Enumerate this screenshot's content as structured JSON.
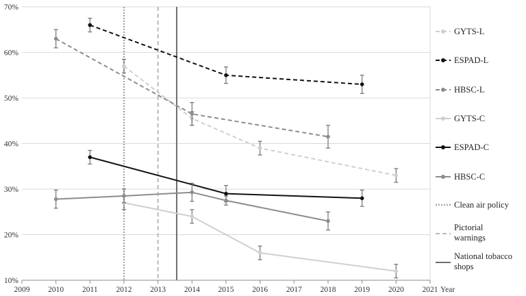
{
  "chart_data": {
    "type": "line",
    "title": "",
    "xlabel": "Year",
    "ylabel": "",
    "xlim": [
      2009,
      2021
    ],
    "ylim": [
      10,
      70
    ],
    "x_ticks": [
      "2009",
      "2010",
      "2011",
      "2012",
      "2013",
      "2014",
      "2015",
      "2016",
      "2017",
      "2018",
      "2019",
      "2020",
      "2021"
    ],
    "y_ticks": [
      "10%",
      "20%",
      "30%",
      "40%",
      "50%",
      "60%",
      "70%"
    ],
    "grid": "horizontal",
    "legend_position": "right",
    "series": [
      {
        "name": "GYTS-L",
        "color": "#cfcfcf",
        "dash": "dashed",
        "width": 2,
        "points": [
          {
            "x": 2012,
            "y": 57,
            "err": 1.5
          },
          {
            "x": 2014,
            "y": 45.5,
            "err": 1.5
          },
          {
            "x": 2016,
            "y": 39,
            "err": 1.5
          },
          {
            "x": 2020,
            "y": 33,
            "err": 1.5
          }
        ]
      },
      {
        "name": "ESPAD-L",
        "color": "#111111",
        "dash": "dashed",
        "width": 2,
        "points": [
          {
            "x": 2011,
            "y": 66,
            "err": 1.5
          },
          {
            "x": 2015,
            "y": 55,
            "err": 1.8
          },
          {
            "x": 2019,
            "y": 53,
            "err": 2
          }
        ]
      },
      {
        "name": "HBSC-L",
        "color": "#8c8c8c",
        "dash": "dashed",
        "width": 2,
        "points": [
          {
            "x": 2010,
            "y": 63,
            "err": 2
          },
          {
            "x": 2014,
            "y": 46.5,
            "err": 2.5
          },
          {
            "x": 2018,
            "y": 41.5,
            "err": 2.5
          }
        ]
      },
      {
        "name": "GYTS-C",
        "color": "#cfcfcf",
        "dash": "solid",
        "width": 2,
        "points": [
          {
            "x": 2012,
            "y": 27,
            "err": 1.5
          },
          {
            "x": 2014,
            "y": 24,
            "err": 1.5
          },
          {
            "x": 2016,
            "y": 16,
            "err": 1.5
          },
          {
            "x": 2020,
            "y": 12,
            "err": 1.5
          }
        ]
      },
      {
        "name": "ESPAD-C",
        "color": "#111111",
        "dash": "solid",
        "width": 2,
        "points": [
          {
            "x": 2011,
            "y": 37,
            "err": 1.5
          },
          {
            "x": 2015,
            "y": 29,
            "err": 1.8
          },
          {
            "x": 2019,
            "y": 28,
            "err": 1.8
          }
        ]
      },
      {
        "name": "HBSC-C",
        "color": "#8c8c8c",
        "dash": "solid",
        "width": 2,
        "points": [
          {
            "x": 2010,
            "y": 27.8,
            "err": 2
          },
          {
            "x": 2012,
            "y": 28.5,
            "err": 1.5
          },
          {
            "x": 2014,
            "y": 29.3,
            "err": 2
          },
          {
            "x": 2015,
            "y": 27.5,
            "err": 1
          },
          {
            "x": 2018,
            "y": 23,
            "err": 2
          }
        ]
      }
    ],
    "policy_lines": [
      {
        "name": "Clean air policy",
        "x": 2012,
        "color": "#a8a8a8",
        "dash": "dotted",
        "width": 2.5
      },
      {
        "name": "Pictorial warnings",
        "x": 2013,
        "color": "#b8b8b8",
        "dash": "dashed",
        "width": 2
      },
      {
        "name": "National tobacco shops",
        "x": 2013.55,
        "color": "#6e6e6e",
        "dash": "solid",
        "width": 2
      }
    ]
  }
}
